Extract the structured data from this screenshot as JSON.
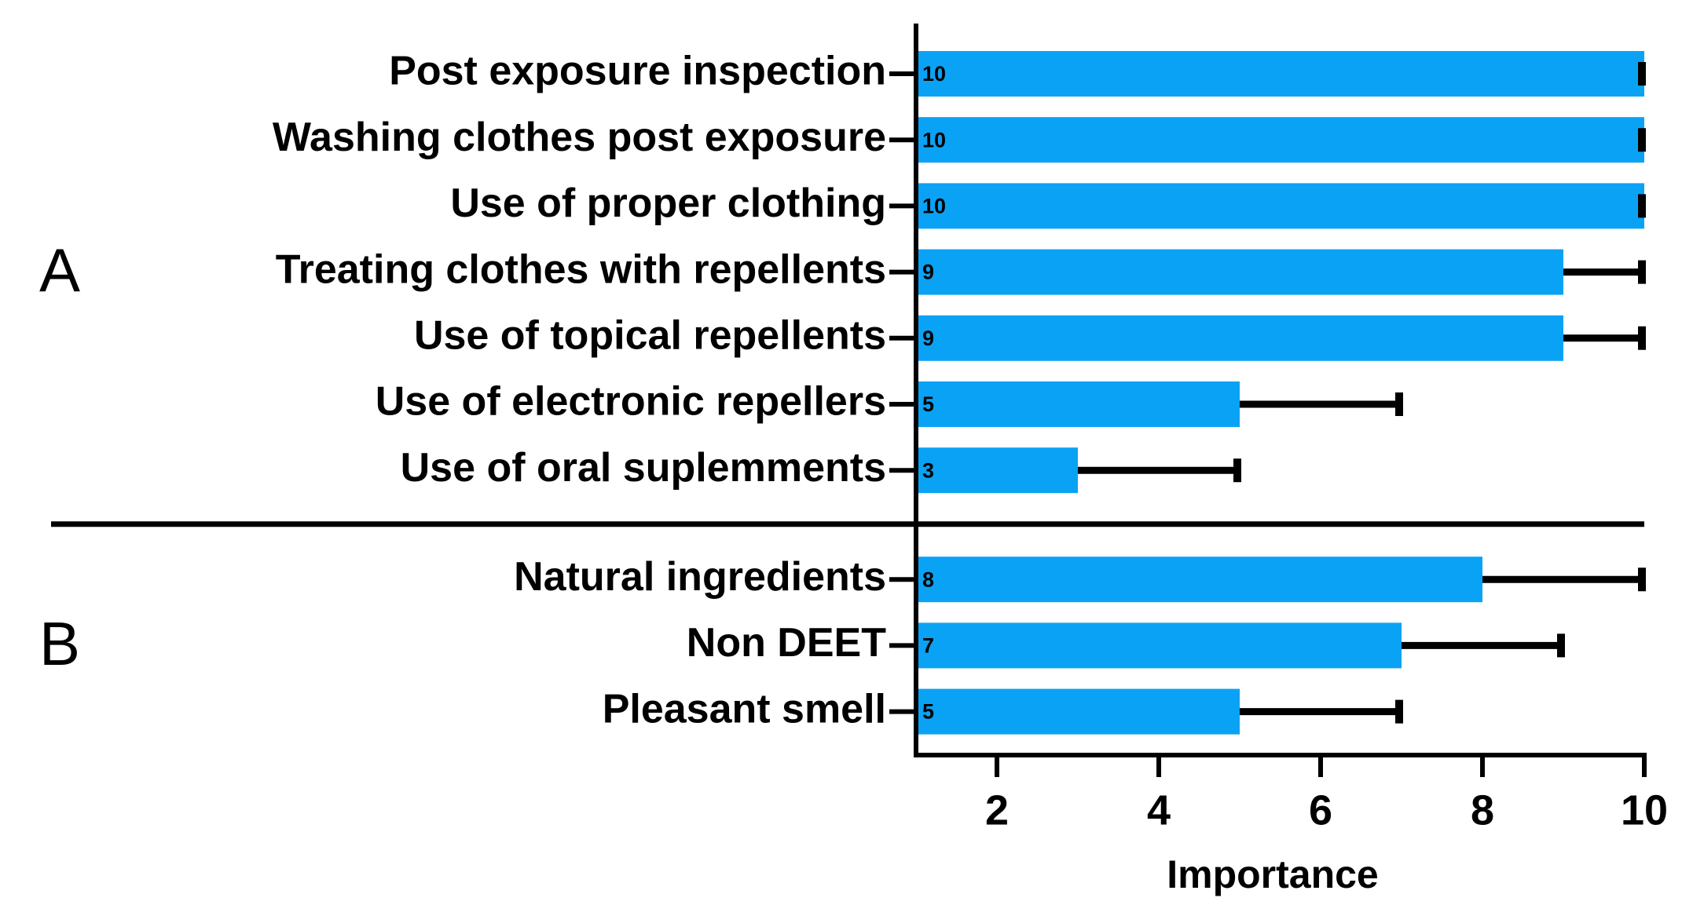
{
  "chart_data": {
    "type": "bar",
    "orientation": "horizontal",
    "x_label": "Importance",
    "color": "#0aa2f5",
    "xlim": [
      1,
      10
    ],
    "xticks": [
      2,
      4,
      6,
      8,
      10
    ],
    "groups": [
      {
        "label": "A",
        "categories": [
          "Post exposure inspection",
          "Washing clothes post exposure",
          "Use of proper clothing",
          "Treating clothes with repellents",
          "Use of topical repellents",
          "Use of electronic repellers",
          "Use of oral suplemments"
        ],
        "values": [
          10,
          10,
          10,
          9,
          9,
          5,
          3
        ],
        "errors": [
          0,
          0,
          0,
          1,
          1,
          2,
          2
        ]
      },
      {
        "label": "B",
        "categories": [
          "Natural ingredients",
          "Non DEET",
          "Pleasant smell"
        ],
        "values": [
          8,
          7,
          5
        ],
        "errors": [
          2,
          2,
          2
        ]
      }
    ]
  }
}
